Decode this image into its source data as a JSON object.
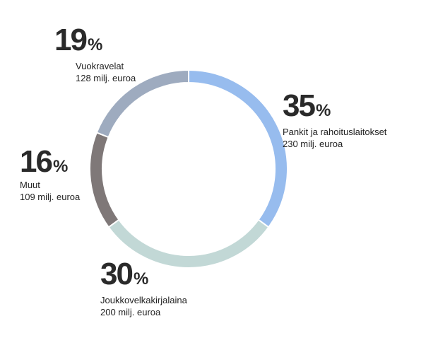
{
  "chart_data": {
    "type": "pie",
    "style": "donut",
    "categories": [
      "Pankit ja rahoituslaitokset",
      "Joukkovelkakirjalaina",
      "Muut",
      "Vuokravelat"
    ],
    "values": [
      35,
      30,
      16,
      19
    ],
    "unit": "%",
    "amounts": [
      "230 milj. euroa",
      "200 milj. euroa",
      "109 milj. euroa",
      "128 milj. euroa"
    ],
    "colors": [
      "#97bcee",
      "#c2d8d6",
      "#7f7878",
      "#9eabbf"
    ]
  },
  "labels": {
    "banks": {
      "value": "35",
      "sign": "%",
      "name": "Pankit ja rahoituslaitokset",
      "amount": "230 milj. euroa"
    },
    "bonds": {
      "value": "30",
      "sign": "%",
      "name": "Joukkovelkakirjalaina",
      "amount": "200 milj. euroa"
    },
    "other": {
      "value": "16",
      "sign": "%",
      "name": "Muut",
      "amount": "109 milj. euroa"
    },
    "leases": {
      "value": "19",
      "sign": "%",
      "name": "Vuokravelat",
      "amount": "128 milj. euroa"
    }
  }
}
